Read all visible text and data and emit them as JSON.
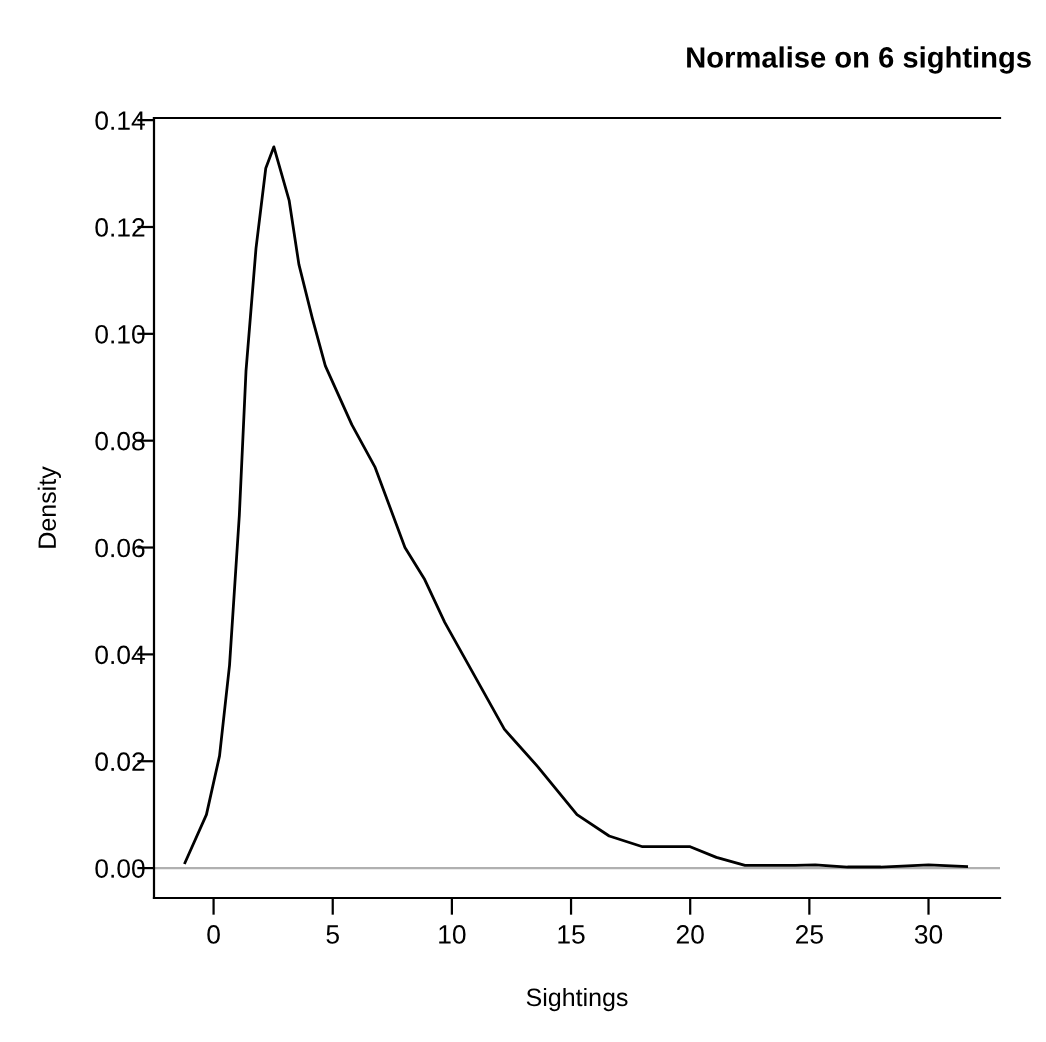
{
  "chart_data": {
    "type": "line",
    "title": "Normalise on 6 sightings",
    "xlabel": "Sightings",
    "ylabel": "Density",
    "series": [
      {
        "color": "#000000",
        "x": [
          -1.2,
          -0.3,
          0.25,
          0.67,
          1.08,
          1.36,
          1.78,
          2.19,
          2.53,
          3.17,
          3.58,
          4.14,
          4.69,
          5.8,
          6.78,
          8.03,
          8.86,
          9.7,
          11.2,
          12.2,
          13.6,
          15.25,
          16.6,
          18.0,
          20.0,
          21.1,
          22.3,
          24.4,
          25.25,
          26.6,
          28.0,
          30.0,
          31.6
        ],
        "values": [
          0.001,
          0.01,
          0.021,
          0.038,
          0.066,
          0.093,
          0.116,
          0.131,
          0.135,
          0.125,
          0.113,
          0.103,
          0.094,
          0.083,
          0.075,
          0.06,
          0.054,
          0.046,
          0.034,
          0.026,
          0.019,
          0.01,
          0.006,
          0.004,
          0.004,
          0.002,
          0.0005,
          0.0005,
          0.0006,
          0.0002,
          0.0002,
          0.0006,
          0.0003
        ]
      }
    ],
    "xlim": [
      -2.5,
      33
    ],
    "ylim": [
      -0.0056,
      0.1404
    ],
    "xticks": [
      0,
      5,
      10,
      15,
      20,
      25,
      30
    ],
    "yticks": [
      {
        "value": 0,
        "label": "0.00"
      },
      {
        "value": 0.02,
        "label": "0.02"
      },
      {
        "value": 0.04,
        "label": "0.04"
      },
      {
        "value": 0.06,
        "label": "0.06"
      },
      {
        "value": 0.08,
        "label": "0.08"
      },
      {
        "value": 0.1,
        "label": "0.10"
      },
      {
        "value": 0.12,
        "label": "0.12"
      },
      {
        "value": 0.14,
        "label": "0.14"
      }
    ],
    "ref_lines": [
      {
        "axis": "y",
        "value": 0,
        "color": "#b0b0b0"
      }
    ],
    "grid": false,
    "legend": false,
    "line_style": "solid"
  }
}
